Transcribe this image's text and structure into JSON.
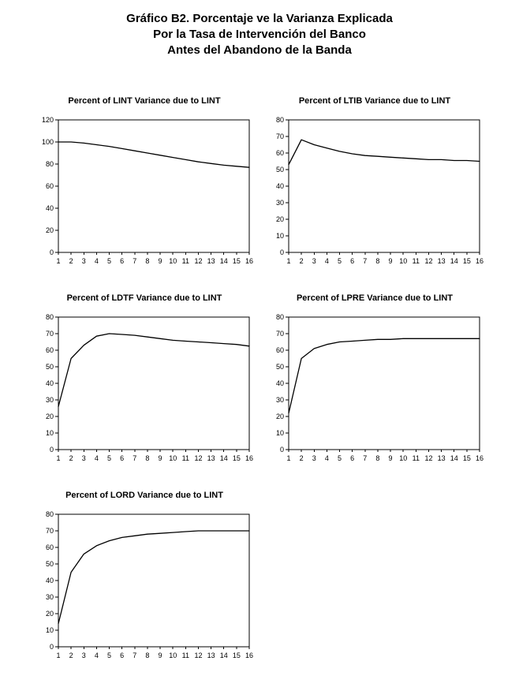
{
  "page": {
    "title_lines": [
      "Gráfico B2. Porcentaje ve la Varianza Explicada",
      "Por la Tasa de Intervención del Banco",
      "Antes del Abandono de la Banda"
    ]
  },
  "style": {
    "line_color": "#000000",
    "axis_color": "#000000",
    "background": "#ffffff"
  },
  "chart_data": [
    {
      "type": "line",
      "title": "Percent of LINT Variance due to LINT",
      "x": [
        1,
        2,
        3,
        4,
        5,
        6,
        7,
        8,
        9,
        10,
        11,
        12,
        13,
        14,
        15,
        16
      ],
      "values": [
        100,
        100,
        99,
        97.5,
        96,
        94,
        92,
        90,
        88,
        86,
        84,
        82,
        80.5,
        79,
        78,
        77
      ],
      "xlabel": "",
      "ylabel": "",
      "ylim": [
        0,
        120
      ],
      "yticks": [
        0,
        20,
        40,
        60,
        80,
        100,
        120
      ],
      "grid": false,
      "legend": null
    },
    {
      "type": "line",
      "title": "Percent of LTIB Variance due to LINT",
      "x": [
        1,
        2,
        3,
        4,
        5,
        6,
        7,
        8,
        9,
        10,
        11,
        12,
        13,
        14,
        15,
        16
      ],
      "values": [
        53,
        68,
        65,
        63,
        61,
        59.5,
        58.5,
        58,
        57.5,
        57,
        56.5,
        56,
        56,
        55.5,
        55.5,
        55
      ],
      "xlabel": "",
      "ylabel": "",
      "ylim": [
        0,
        80
      ],
      "yticks": [
        0,
        10,
        20,
        30,
        40,
        50,
        60,
        70,
        80
      ],
      "grid": false,
      "legend": null
    },
    {
      "type": "line",
      "title": "Percent of LDTF Variance due to LINT",
      "x": [
        1,
        2,
        3,
        4,
        5,
        6,
        7,
        8,
        9,
        10,
        11,
        12,
        13,
        14,
        15,
        16
      ],
      "values": [
        26,
        55,
        63,
        68.5,
        70,
        69.5,
        69,
        68,
        67,
        66,
        65.5,
        65,
        64.5,
        64,
        63.5,
        62.5
      ],
      "xlabel": "",
      "ylabel": "",
      "ylim": [
        0,
        80
      ],
      "yticks": [
        0,
        10,
        20,
        30,
        40,
        50,
        60,
        70,
        80
      ],
      "grid": false,
      "legend": null
    },
    {
      "type": "line",
      "title": "Percent of LPRE Variance due to LINT",
      "x": [
        1,
        2,
        3,
        4,
        5,
        6,
        7,
        8,
        9,
        10,
        11,
        12,
        13,
        14,
        15,
        16
      ],
      "values": [
        22,
        55,
        61,
        63.5,
        65,
        65.5,
        66,
        66.5,
        66.5,
        67,
        67,
        67,
        67,
        67,
        67,
        67
      ],
      "xlabel": "",
      "ylabel": "",
      "ylim": [
        0,
        80
      ],
      "yticks": [
        0,
        10,
        20,
        30,
        40,
        50,
        60,
        70,
        80
      ],
      "grid": false,
      "legend": null
    },
    {
      "type": "line",
      "title": "Percent of LORD Variance due to LINT",
      "x": [
        1,
        2,
        3,
        4,
        5,
        6,
        7,
        8,
        9,
        10,
        11,
        12,
        13,
        14,
        15,
        16
      ],
      "values": [
        14,
        45,
        56,
        61,
        64,
        66,
        67,
        68,
        68.5,
        69,
        69.5,
        70,
        70,
        70,
        70,
        70
      ],
      "xlabel": "",
      "ylabel": "",
      "ylim": [
        0,
        80
      ],
      "yticks": [
        0,
        10,
        20,
        30,
        40,
        50,
        60,
        70,
        80
      ],
      "grid": false,
      "legend": null
    }
  ]
}
